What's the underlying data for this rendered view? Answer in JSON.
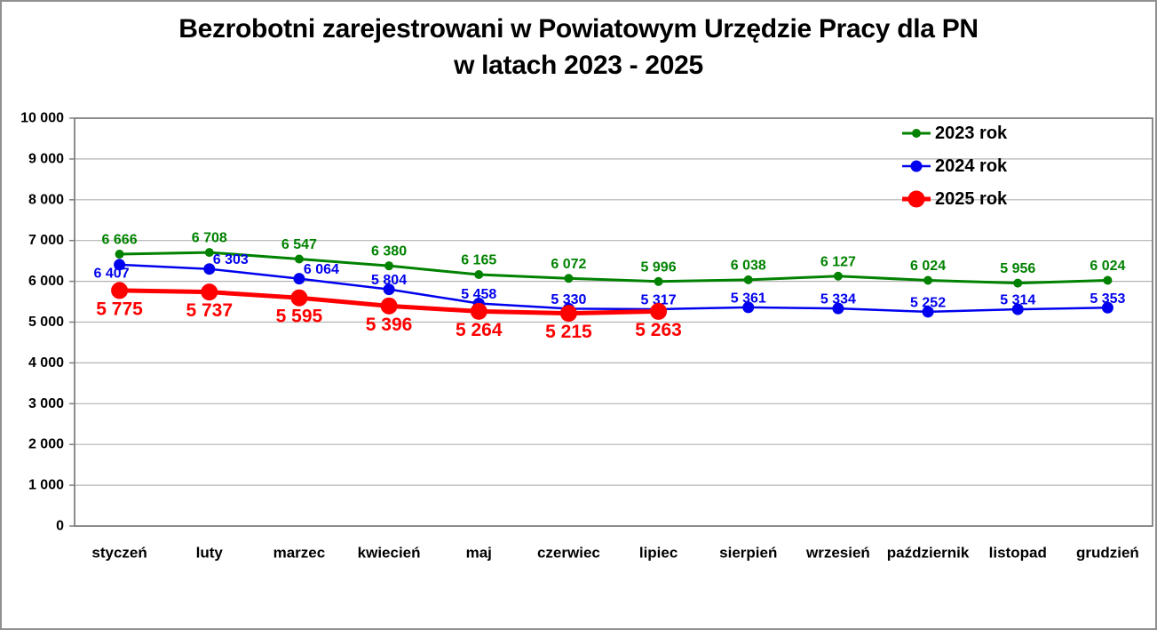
{
  "title": {
    "line1": "Bezrobotni zarejestrowani w Powiatowym Urzędzie Pracy dla PN",
    "line2": "w latach 2023 - 2025"
  },
  "chart_data": {
    "type": "line",
    "title": "Bezrobotni zarejestrowani w Powiatowym Urzędzie Pracy dla PN w latach 2023 - 2025",
    "categories": [
      "styczeń",
      "luty",
      "marzec",
      "kwiecień",
      "maj",
      "czerwiec",
      "lipiec",
      "sierpień",
      "wrzesień",
      "październik",
      "listopad",
      "grudzień"
    ],
    "series": [
      {
        "name": "2023 rok",
        "color": "#008200",
        "values": [
          6666,
          6708,
          6547,
          6380,
          6165,
          6072,
          5996,
          6038,
          6127,
          6024,
          5956,
          6024
        ],
        "labels": [
          "6 666",
          "6 708",
          "6 547",
          "6 380",
          "6 165",
          "6 072",
          "5 996",
          "6 038",
          "6 127",
          "6 024",
          "5 956",
          "6 024"
        ]
      },
      {
        "name": "2024 rok",
        "color": "#0000ee",
        "values": [
          6407,
          6303,
          6064,
          5804,
          5458,
          5330,
          5317,
          5361,
          5334,
          5252,
          5314,
          5353
        ],
        "labels": [
          "6 407",
          "6 303",
          "6 064",
          "5 804",
          "5 458",
          "5 330",
          "5 317",
          "5 361",
          "5 334",
          "5 252",
          "5 314",
          "5 353"
        ],
        "label_offsets": {
          "0": [
            -9,
            10
          ],
          "1": [
            24,
            -10
          ],
          "2": [
            25,
            -10
          ]
        }
      },
      {
        "name": "2025 rok",
        "color": "#ff0000",
        "values": [
          5775,
          5737,
          5595,
          5396,
          5264,
          5215,
          5263
        ],
        "labels": [
          "5 775",
          "5 737",
          "5 595",
          "5 396",
          "5 264",
          "5 215",
          "5 263"
        ]
      }
    ],
    "ylim": [
      0,
      10000
    ],
    "ytick_step": 1000,
    "yticks": [
      "0",
      "1 000",
      "2 000",
      "3 000",
      "4 000",
      "5 000",
      "6 000",
      "7 000",
      "8 000",
      "9 000",
      "10 000"
    ],
    "xlabel": "",
    "ylabel": "",
    "grid": true,
    "legend_position": "top-right",
    "legend": [
      "2023 rok",
      "2024 rok",
      "2025 rok"
    ]
  },
  "colors": {
    "grid": "#b3b3b3",
    "plot_border": "#7f7f7f",
    "axis_text": "#000000",
    "background": "#ffffff"
  }
}
